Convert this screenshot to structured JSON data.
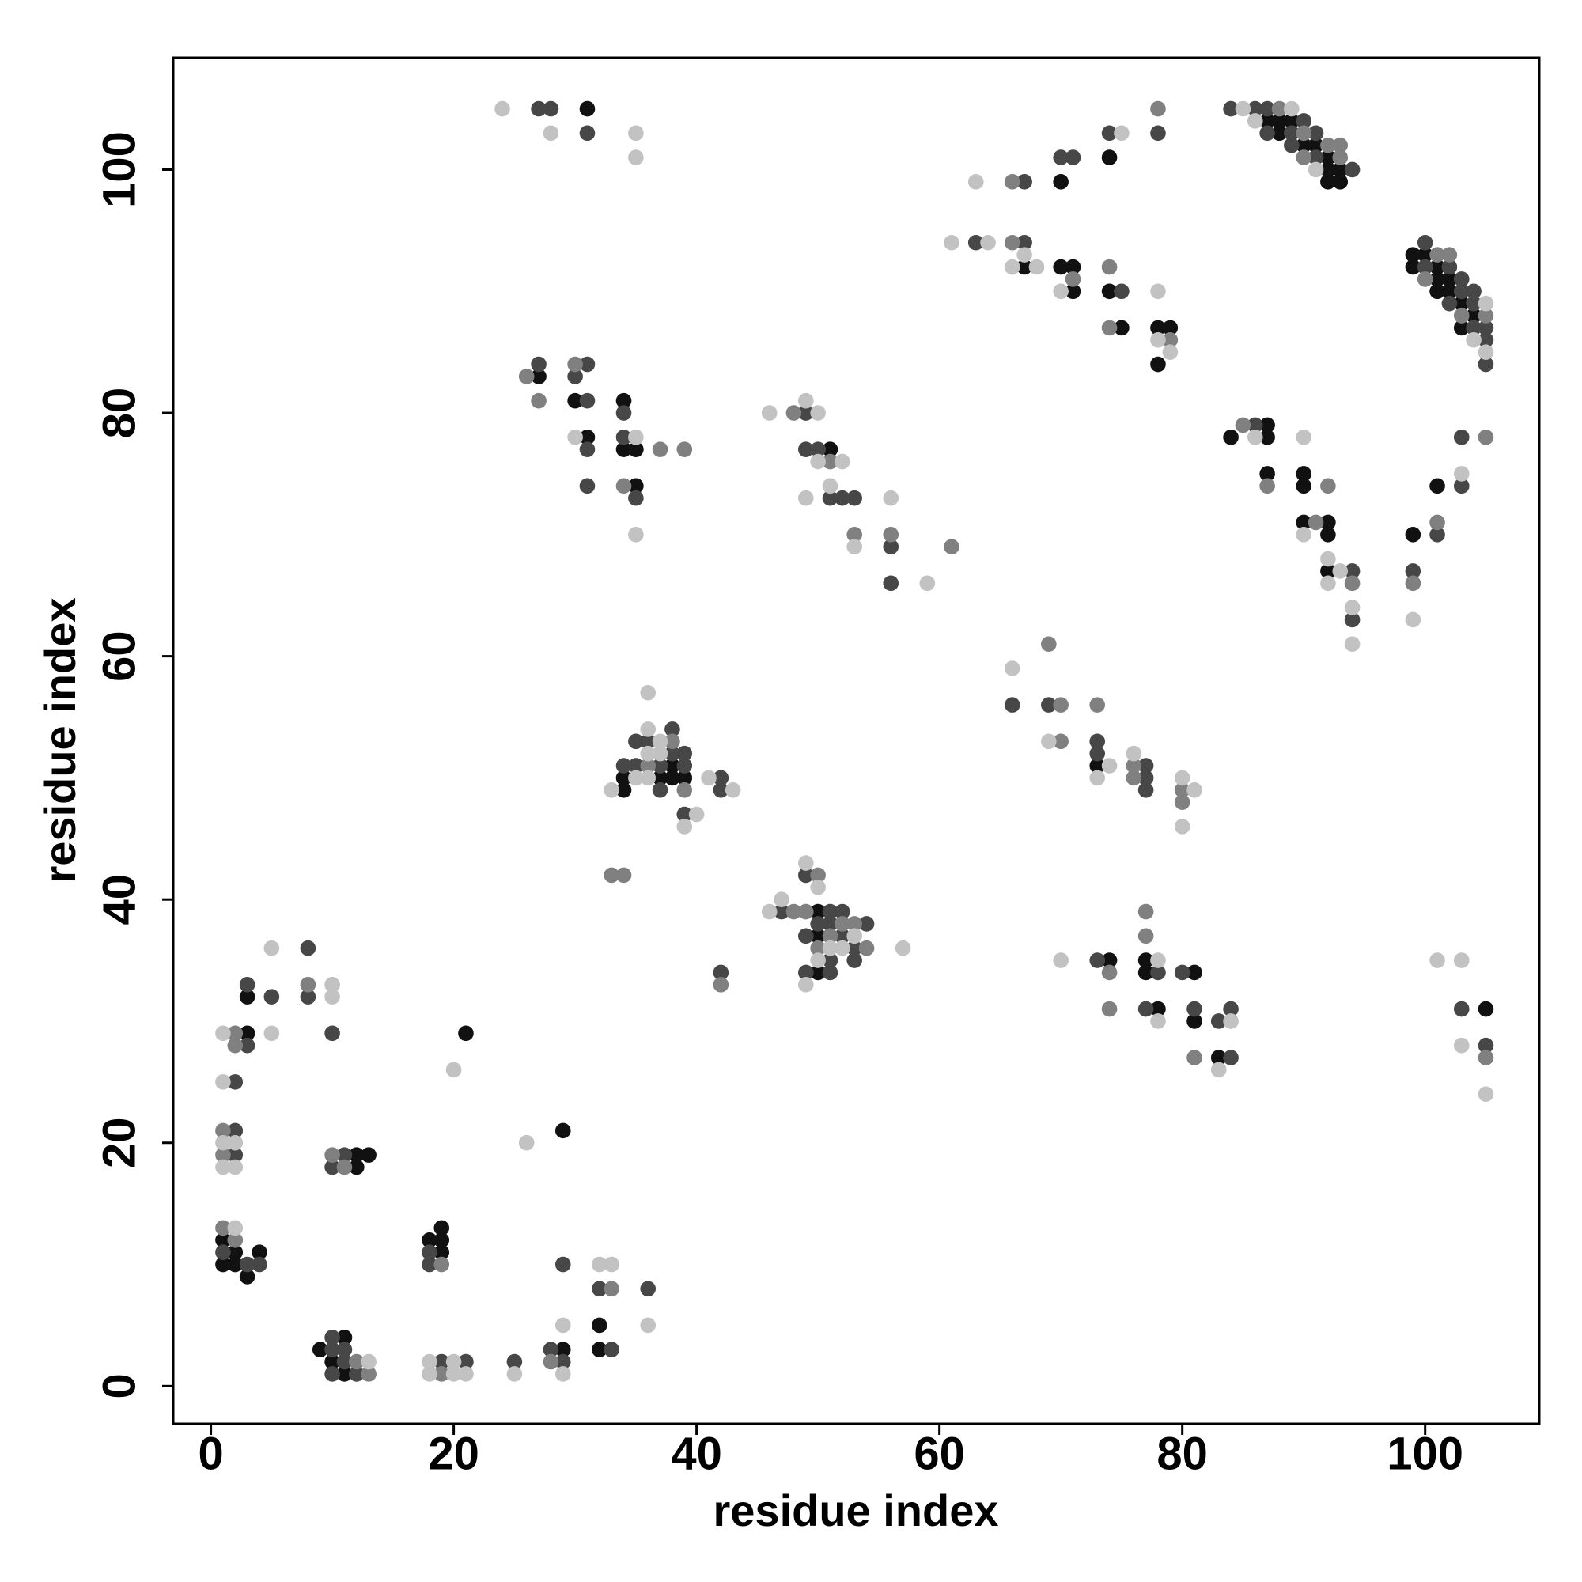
{
  "chart_data": {
    "type": "scatter",
    "xlabel": "residue index",
    "ylabel": "residue index",
    "xlim": [
      -3.1,
      109.4
    ],
    "ylim": [
      -3.1,
      109.2
    ],
    "xticks": [
      0,
      20,
      40,
      60,
      80,
      100
    ],
    "yticks": [
      0,
      20,
      40,
      60,
      80,
      100
    ],
    "grid": false,
    "series": [
      {
        "color": "#111111",
        "x": [
          3,
          3,
          12,
          13,
          12,
          1,
          2,
          4,
          1,
          2,
          3,
          18,
          19,
          19,
          19,
          9,
          11,
          10,
          11,
          21,
          29,
          29,
          32,
          32,
          38,
          34,
          37,
          38,
          39,
          34,
          50,
          50,
          50,
          31,
          27,
          30,
          31,
          34,
          34,
          35,
          35,
          51,
          73,
          74,
          77,
          77,
          78,
          81,
          81,
          83,
          105,
          70,
          74,
          67,
          70,
          71,
          71,
          74,
          75,
          78,
          79,
          78,
          87,
          88,
          89,
          88,
          90,
          91,
          92,
          92,
          93,
          92,
          93,
          99,
          99,
          100,
          101,
          101,
          102,
          101,
          102,
          103,
          104,
          103,
          84,
          87,
          87,
          87,
          90,
          90,
          90,
          92,
          92,
          92,
          99,
          101
        ],
        "values": [
          29,
          32,
          19,
          19,
          18,
          12,
          11,
          11,
          10,
          10,
          9,
          12,
          13,
          12,
          11,
          3,
          4,
          2,
          1,
          29,
          21,
          3,
          5,
          3,
          51,
          50,
          50,
          50,
          50,
          49,
          39,
          37,
          34,
          105,
          83,
          81,
          78,
          81,
          77,
          77,
          74,
          77,
          51,
          35,
          35,
          34,
          31,
          34,
          30,
          27,
          31,
          99,
          101,
          92,
          92,
          92,
          90,
          90,
          87,
          87,
          87,
          84,
          104,
          104,
          104,
          103,
          102,
          102,
          101,
          100,
          100,
          99,
          99,
          93,
          92,
          93,
          92,
          91,
          91,
          90,
          90,
          89,
          88,
          87,
          78,
          79,
          78,
          75,
          75,
          74,
          71,
          71,
          70,
          67,
          70,
          74
        ]
      },
      {
        "color": "#474747",
        "x": [
          3,
          3,
          5,
          8,
          8,
          10,
          2,
          2,
          2,
          11,
          10,
          1,
          3,
          4,
          18,
          18,
          10,
          10,
          11,
          11,
          10,
          12,
          19,
          21,
          25,
          28,
          29,
          29,
          32,
          33,
          36,
          38,
          35,
          36,
          38,
          39,
          34,
          35,
          37,
          39,
          37,
          39,
          42,
          42,
          42,
          49,
          47,
          51,
          52,
          50,
          51,
          54,
          49,
          52,
          53,
          51,
          53,
          49,
          51,
          27,
          28,
          31,
          27,
          31,
          30,
          31,
          31,
          31,
          34,
          34,
          35,
          49,
          49,
          50,
          51,
          52,
          53,
          56,
          56,
          66,
          69,
          73,
          73,
          77,
          77,
          77,
          73,
          78,
          77,
          80,
          81,
          83,
          84,
          84,
          103,
          105,
          67,
          70,
          71,
          74,
          78,
          63,
          67,
          75,
          84,
          86,
          87,
          90,
          87,
          89,
          91,
          89,
          91,
          94,
          100,
          102,
          100,
          103,
          103,
          104,
          102,
          104,
          104,
          105,
          105,
          105,
          86,
          94,
          94,
          99,
          101,
          103,
          103
        ],
        "values": [
          28,
          33,
          32,
          36,
          32,
          29,
          25,
          21,
          19,
          19,
          18,
          11,
          10,
          10,
          11,
          10,
          4,
          3,
          3,
          2,
          1,
          1,
          2,
          2,
          2,
          3,
          2,
          10,
          8,
          3,
          8,
          54,
          53,
          53,
          52,
          52,
          51,
          51,
          51,
          51,
          49,
          47,
          50,
          49,
          34,
          42,
          39,
          39,
          39,
          38,
          38,
          38,
          37,
          37,
          36,
          35,
          35,
          34,
          34,
          105,
          105,
          103,
          84,
          84,
          83,
          81,
          77,
          74,
          80,
          78,
          73,
          80,
          77,
          77,
          73,
          73,
          73,
          69,
          66,
          56,
          56,
          53,
          52,
          51,
          50,
          49,
          35,
          34,
          31,
          34,
          31,
          30,
          31,
          27,
          31,
          28,
          99,
          101,
          101,
          103,
          103,
          94,
          94,
          90,
          105,
          105,
          105,
          104,
          103,
          103,
          103,
          102,
          101,
          100,
          94,
          92,
          92,
          91,
          90,
          90,
          89,
          89,
          87,
          87,
          86,
          84,
          79,
          67,
          63,
          67,
          70,
          78,
          74
        ]
      },
      {
        "color": "#808080",
        "x": [
          2,
          2,
          8,
          1,
          1,
          10,
          11,
          1,
          2,
          19,
          12,
          13,
          19,
          28,
          33,
          33,
          34,
          38,
          36,
          39,
          42,
          50,
          48,
          49,
          52,
          53,
          51,
          50,
          54,
          30,
          26,
          27,
          37,
          39,
          34,
          48,
          51,
          53,
          56,
          61,
          69,
          70,
          70,
          73,
          76,
          76,
          80,
          80,
          74,
          74,
          77,
          77,
          81,
          105,
          66,
          78,
          66,
          71,
          74,
          74,
          79,
          88,
          90,
          92,
          93,
          90,
          93,
          101,
          102,
          100,
          103,
          105,
          85,
          87,
          91,
          92,
          94,
          99,
          101,
          105
        ],
        "values": [
          29,
          28,
          33,
          21,
          19,
          19,
          18,
          13,
          12,
          10,
          2,
          1,
          1,
          2,
          8,
          42,
          42,
          53,
          51,
          49,
          33,
          42,
          39,
          39,
          38,
          38,
          37,
          36,
          36,
          84,
          83,
          81,
          77,
          77,
          74,
          80,
          76,
          70,
          70,
          69,
          61,
          56,
          53,
          56,
          51,
          50,
          49,
          48,
          34,
          31,
          39,
          37,
          27,
          27,
          99,
          105,
          94,
          91,
          92,
          87,
          86,
          105,
          103,
          102,
          102,
          101,
          101,
          93,
          93,
          91,
          88,
          88,
          79,
          74,
          71,
          74,
          66,
          66,
          71,
          78
        ]
      },
      {
        "color": "#c2c2c2",
        "x": [
          1,
          5,
          5,
          10,
          10,
          1,
          1,
          2,
          1,
          2,
          2,
          13,
          18,
          20,
          18,
          20,
          21,
          20,
          26,
          25,
          29,
          29,
          32,
          33,
          36,
          36,
          36,
          37,
          36,
          37,
          35,
          36,
          33,
          40,
          39,
          41,
          43,
          49,
          50,
          47,
          46,
          53,
          51,
          52,
          50,
          49,
          57,
          24,
          28,
          35,
          35,
          30,
          35,
          35,
          46,
          49,
          50,
          50,
          52,
          51,
          49,
          53,
          56,
          59,
          66,
          69,
          74,
          73,
          76,
          80,
          81,
          80,
          70,
          78,
          78,
          84,
          83,
          101,
          103,
          103,
          105,
          63,
          75,
          61,
          64,
          67,
          66,
          68,
          70,
          78,
          78,
          79,
          85,
          89,
          86,
          91,
          105,
          104,
          105,
          86,
          90,
          90,
          92,
          93,
          92,
          94,
          94,
          99,
          103
        ],
        "values": [
          29,
          36,
          29,
          33,
          32,
          25,
          20,
          20,
          18,
          18,
          13,
          2,
          2,
          2,
          1,
          1,
          1,
          26,
          20,
          1,
          1,
          5,
          10,
          10,
          5,
          57,
          54,
          53,
          52,
          52,
          50,
          50,
          49,
          47,
          46,
          50,
          49,
          43,
          41,
          40,
          39,
          37,
          36,
          36,
          35,
          33,
          36,
          105,
          103,
          103,
          101,
          78,
          78,
          70,
          80,
          81,
          80,
          76,
          76,
          74,
          73,
          69,
          73,
          66,
          59,
          53,
          51,
          50,
          52,
          50,
          49,
          46,
          35,
          35,
          30,
          30,
          26,
          35,
          35,
          28,
          24,
          99,
          103,
          94,
          94,
          93,
          92,
          92,
          90,
          90,
          86,
          85,
          105,
          105,
          104,
          100,
          89,
          86,
          85,
          78,
          78,
          70,
          68,
          67,
          66,
          64,
          61,
          63,
          75
        ]
      }
    ]
  }
}
